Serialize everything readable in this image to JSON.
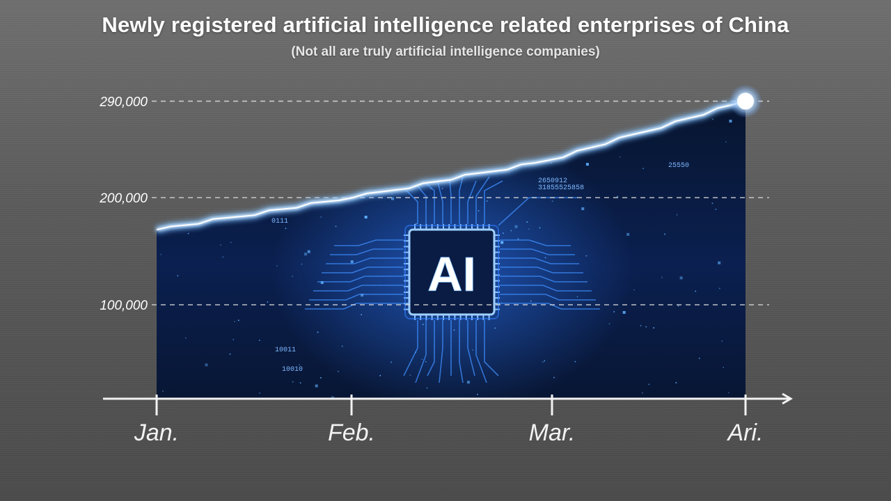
{
  "colors": {
    "background": "#5e5e5e",
    "area_fill": "#0b1a3e",
    "circuit": "#4fa3ff",
    "line_glow": "#9fd0ff",
    "gridline": "#d9d9d9",
    "text": "#ffffff"
  },
  "chart_data": {
    "type": "area",
    "title": "Newly registered artificial intelligence related enterprises of China",
    "subtitle": "(Not all are truly artificial intelligence companies)",
    "categories": [
      "Jan.",
      "Feb.",
      "Mar.",
      "Ari."
    ],
    "series": [
      {
        "values": [
          170000,
          200000,
          235000,
          290000
        ]
      }
    ],
    "yticks": [
      100000,
      200000,
      290000
    ],
    "ytick_labels": [
      "100,000",
      "200,000",
      "290,000"
    ],
    "ylim": [
      10000,
      290000
    ],
    "grid": true,
    "center_badge": "AI",
    "decor_digits": [
      "2650912",
      "31855525858",
      "25550",
      "10011",
      "10010",
      "0111"
    ]
  }
}
